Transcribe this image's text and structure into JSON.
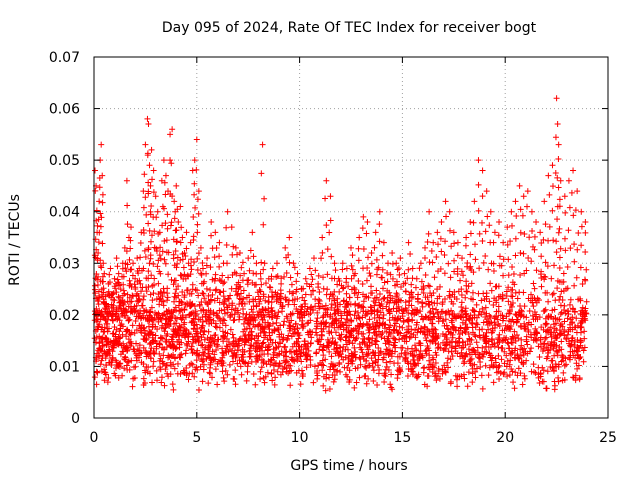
{
  "chart_data": {
    "type": "scatter",
    "title": "Day 095 of 2024, Rate Of TEC Index for receiver bogt",
    "xlabel": "GPS time / hours",
    "ylabel": "ROTI / TECUs",
    "xlim": [
      0,
      25
    ],
    "ylim": [
      0,
      0.07
    ],
    "xticks": [
      0,
      5,
      10,
      15,
      20,
      25
    ],
    "xtick_labels": [
      "0",
      "5",
      "10",
      "15",
      "20",
      "25"
    ],
    "yticks": [
      0,
      0.01,
      0.02,
      0.03,
      0.04,
      0.05,
      0.06,
      0.07
    ],
    "ytick_labels": [
      "0",
      "0.01",
      "0.02",
      "0.03",
      "0.04",
      "0.05",
      "0.06",
      "0.07"
    ],
    "grid": true,
    "marker": "+",
    "color": "#ff0000",
    "series": [
      {
        "name": "ROTI",
        "x": [
          0.05,
          0.1,
          0.15,
          0.2,
          0.25,
          0.3,
          0.35,
          0.4,
          0.45,
          0.5,
          0.6,
          0.7,
          0.8,
          0.9,
          1.0,
          1.1,
          1.2,
          1.3,
          1.4,
          1.5,
          1.6,
          1.7,
          1.8,
          1.9,
          2.0,
          2.1,
          2.2,
          2.3,
          2.4,
          2.5,
          2.6,
          2.65,
          2.7,
          2.75,
          2.8,
          2.9,
          3.0,
          3.1,
          3.2,
          3.3,
          3.4,
          3.5,
          3.6,
          3.7,
          3.8,
          3.9,
          3.95,
          4.0,
          4.1,
          4.2,
          4.3,
          4.4,
          4.5,
          4.6,
          4.7,
          4.8,
          4.9,
          5.0,
          5.1,
          5.2,
          5.3,
          5.5,
          5.7,
          5.9,
          6.1,
          6.3,
          6.5,
          6.7,
          6.9,
          7.1,
          7.3,
          7.5,
          7.7,
          7.9,
          8.1,
          8.2,
          8.3,
          8.5,
          8.7,
          8.9,
          9.1,
          9.3,
          9.5,
          9.7,
          9.9,
          10.1,
          10.3,
          10.5,
          10.7,
          10.9,
          11.1,
          11.3,
          11.5,
          11.7,
          11.9,
          12.1,
          12.3,
          12.5,
          12.7,
          12.9,
          13.1,
          13.3,
          13.5,
          13.7,
          13.9,
          14.1,
          14.3,
          14.5,
          14.7,
          14.9,
          15.1,
          15.3,
          15.5,
          15.7,
          15.9,
          16.1,
          16.3,
          16.5,
          16.7,
          16.9,
          17.1,
          17.3,
          17.5,
          17.7,
          17.9,
          18.1,
          18.3,
          18.5,
          18.7,
          18.9,
          19.1,
          19.3,
          19.5,
          19.7,
          19.9,
          20.1,
          20.3,
          20.5,
          20.7,
          20.9,
          21.1,
          21.3,
          21.5,
          21.7,
          21.9,
          22.1,
          22.3,
          22.5,
          22.55,
          22.6,
          22.7,
          22.9,
          23.1,
          23.3,
          23.5,
          23.7,
          23.9
        ],
        "y": [
          0.048,
          0.045,
          0.036,
          0.032,
          0.042,
          0.05,
          0.053,
          0.047,
          0.03,
          0.028,
          0.022,
          0.026,
          0.029,
          0.024,
          0.027,
          0.031,
          0.028,
          0.025,
          0.03,
          0.033,
          0.046,
          0.035,
          0.037,
          0.03,
          0.027,
          0.031,
          0.029,
          0.036,
          0.044,
          0.053,
          0.058,
          0.057,
          0.049,
          0.045,
          0.052,
          0.048,
          0.043,
          0.04,
          0.036,
          0.046,
          0.05,
          0.047,
          0.044,
          0.055,
          0.056,
          0.042,
          0.04,
          0.045,
          0.038,
          0.041,
          0.035,
          0.032,
          0.036,
          0.03,
          0.034,
          0.048,
          0.05,
          0.054,
          0.044,
          0.033,
          0.029,
          0.031,
          0.038,
          0.036,
          0.034,
          0.03,
          0.04,
          0.037,
          0.033,
          0.032,
          0.028,
          0.031,
          0.036,
          0.03,
          0.028,
          0.053,
          0.03,
          0.027,
          0.029,
          0.03,
          0.026,
          0.033,
          0.035,
          0.03,
          0.028,
          0.025,
          0.027,
          0.029,
          0.031,
          0.026,
          0.035,
          0.046,
          0.043,
          0.03,
          0.027,
          0.03,
          0.029,
          0.033,
          0.028,
          0.035,
          0.039,
          0.038,
          0.032,
          0.036,
          0.04,
          0.034,
          0.03,
          0.032,
          0.03,
          0.031,
          0.028,
          0.034,
          0.029,
          0.027,
          0.03,
          0.033,
          0.04,
          0.034,
          0.036,
          0.038,
          0.042,
          0.04,
          0.036,
          0.034,
          0.031,
          0.035,
          0.038,
          0.042,
          0.05,
          0.048,
          0.044,
          0.04,
          0.036,
          0.038,
          0.034,
          0.037,
          0.04,
          0.042,
          0.045,
          0.043,
          0.044,
          0.04,
          0.038,
          0.036,
          0.042,
          0.047,
          0.049,
          0.062,
          0.057,
          0.053,
          0.046,
          0.043,
          0.046,
          0.048,
          0.044,
          0.04,
          0.038
        ]
      }
    ],
    "baseline_band": {
      "description": "dense scatter of ROTI values across the day",
      "typical_low": 0.005,
      "typical_high": 0.025
    }
  }
}
